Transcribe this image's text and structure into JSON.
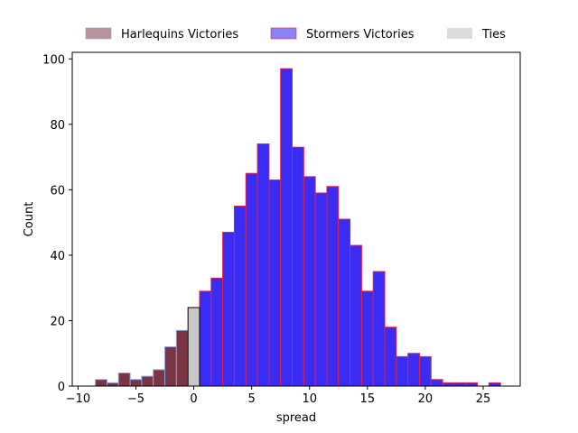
{
  "chart_data": {
    "type": "bar",
    "title": "",
    "xlabel": "spread",
    "ylabel": "Count",
    "xlim": [
      -10.5,
      28.2
    ],
    "ylim": [
      0,
      102
    ],
    "bin_width": 1,
    "xticks": [
      -10,
      -5,
      0,
      5,
      10,
      15,
      20,
      25
    ],
    "yticks": [
      0,
      20,
      40,
      60,
      80,
      100
    ],
    "grid": false,
    "legend_position": "top-center, outside plot",
    "series": [
      {
        "name": "Harlequins Victories",
        "fill": "#7a3545",
        "legend_fill": "#b8959d",
        "edge": "#8a9fd8",
        "bins": [
          {
            "x": -8,
            "count": 2
          },
          {
            "x": -7,
            "count": 1
          },
          {
            "x": -6,
            "count": 4
          },
          {
            "x": -5,
            "count": 2
          },
          {
            "x": -4,
            "count": 3
          },
          {
            "x": -3,
            "count": 5
          },
          {
            "x": -2,
            "count": 12
          },
          {
            "x": -1,
            "count": 17
          }
        ]
      },
      {
        "name": "Stormers Victories",
        "fill": "#3a2cf2",
        "legend_fill": "#8a82f6",
        "edge": "#e0204a",
        "bins": [
          {
            "x": 1,
            "count": 29
          },
          {
            "x": 2,
            "count": 33
          },
          {
            "x": 3,
            "count": 47
          },
          {
            "x": 4,
            "count": 55
          },
          {
            "x": 5,
            "count": 65
          },
          {
            "x": 6,
            "count": 74
          },
          {
            "x": 7,
            "count": 63
          },
          {
            "x": 8,
            "count": 97
          },
          {
            "x": 9,
            "count": 73
          },
          {
            "x": 10,
            "count": 64
          },
          {
            "x": 11,
            "count": 59
          },
          {
            "x": 12,
            "count": 61
          },
          {
            "x": 13,
            "count": 51
          },
          {
            "x": 14,
            "count": 43
          },
          {
            "x": 15,
            "count": 29
          },
          {
            "x": 16,
            "count": 35
          },
          {
            "x": 17,
            "count": 18
          },
          {
            "x": 18,
            "count": 9
          },
          {
            "x": 19,
            "count": 10
          },
          {
            "x": 20,
            "count": 9
          },
          {
            "x": 21,
            "count": 2
          },
          {
            "x": 22,
            "count": 1
          },
          {
            "x": 23,
            "count": 1
          },
          {
            "x": 24,
            "count": 1
          },
          {
            "x": 26,
            "count": 1
          }
        ]
      },
      {
        "name": "Ties",
        "fill": "#c8c8c8",
        "legend_fill": "#dcdcdc",
        "edge": "#000000",
        "bins": [
          {
            "x": 0,
            "count": 24
          }
        ]
      }
    ]
  }
}
